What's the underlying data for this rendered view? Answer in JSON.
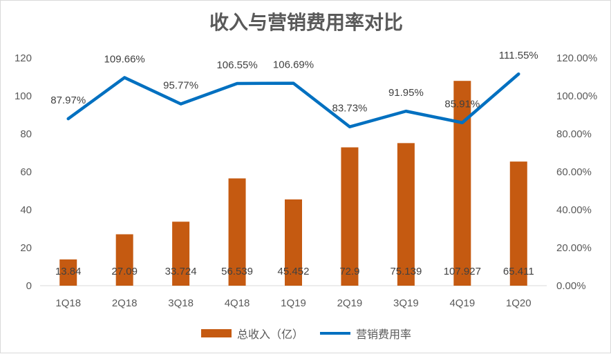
{
  "chart_data": {
    "type": "bar+line",
    "title": "收入与营销费用率对比",
    "categories": [
      "1Q18",
      "2Q18",
      "3Q18",
      "4Q18",
      "1Q19",
      "2Q19",
      "3Q19",
      "4Q19",
      "1Q20"
    ],
    "series": [
      {
        "name": "总收入（亿）",
        "type": "bar",
        "axis": "left",
        "values": [
          13.84,
          27.09,
          33.724,
          56.539,
          45.452,
          72.9,
          75.139,
          107.927,
          65.411
        ],
        "labels": [
          "13.84",
          "27.09",
          "33.724",
          "56.539",
          "45.452",
          "72.9",
          "75.139",
          "107.927",
          "65.411"
        ],
        "color": "#c55a11"
      },
      {
        "name": "营销费用率",
        "type": "line",
        "axis": "right",
        "values": [
          87.97,
          109.66,
          95.77,
          106.55,
          106.69,
          83.73,
          91.95,
          85.91,
          111.55
        ],
        "labels": [
          "87.97%",
          "109.66%",
          "95.77%",
          "106.55%",
          "106.69%",
          "83.73%",
          "91.95%",
          "85.91%",
          "111.55%"
        ],
        "color": "#0070c0"
      }
    ],
    "y_left": {
      "min": 0,
      "max": 120,
      "ticks": [
        "0",
        "20",
        "40",
        "60",
        "80",
        "100",
        "120"
      ]
    },
    "y_right": {
      "min": 0,
      "max": 120,
      "ticks": [
        "0.00%",
        "20.00%",
        "40.00%",
        "60.00%",
        "80.00%",
        "100.00%",
        "120.00%"
      ]
    },
    "grid": false,
    "legend_position": "bottom"
  }
}
